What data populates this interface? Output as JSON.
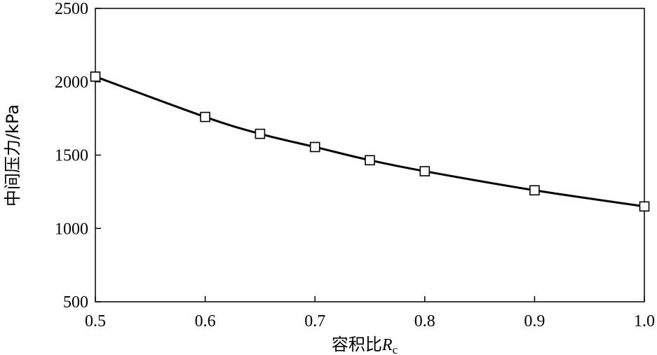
{
  "chart_data": {
    "type": "line",
    "title": "",
    "xlabel": "容积比",
    "xlabel_var": "R",
    "xlabel_sub": "c",
    "ylabel": "中间压力/kPa",
    "xlim": [
      0.5,
      1.0
    ],
    "ylim": [
      500,
      2500
    ],
    "xticks": [
      "0.5",
      "0.6",
      "0.7",
      "0.8",
      "0.9",
      "1.0"
    ],
    "yticks": [
      "500",
      "1000",
      "1500",
      "2000",
      "2500"
    ],
    "grid": false,
    "marker": "square",
    "series": [
      {
        "x": [
          0.5,
          0.6,
          0.65,
          0.7,
          0.75,
          0.8,
          0.9,
          1.0
        ],
        "values": [
          2035,
          1760,
          1645,
          1555,
          1465,
          1390,
          1260,
          1150
        ]
      }
    ]
  }
}
